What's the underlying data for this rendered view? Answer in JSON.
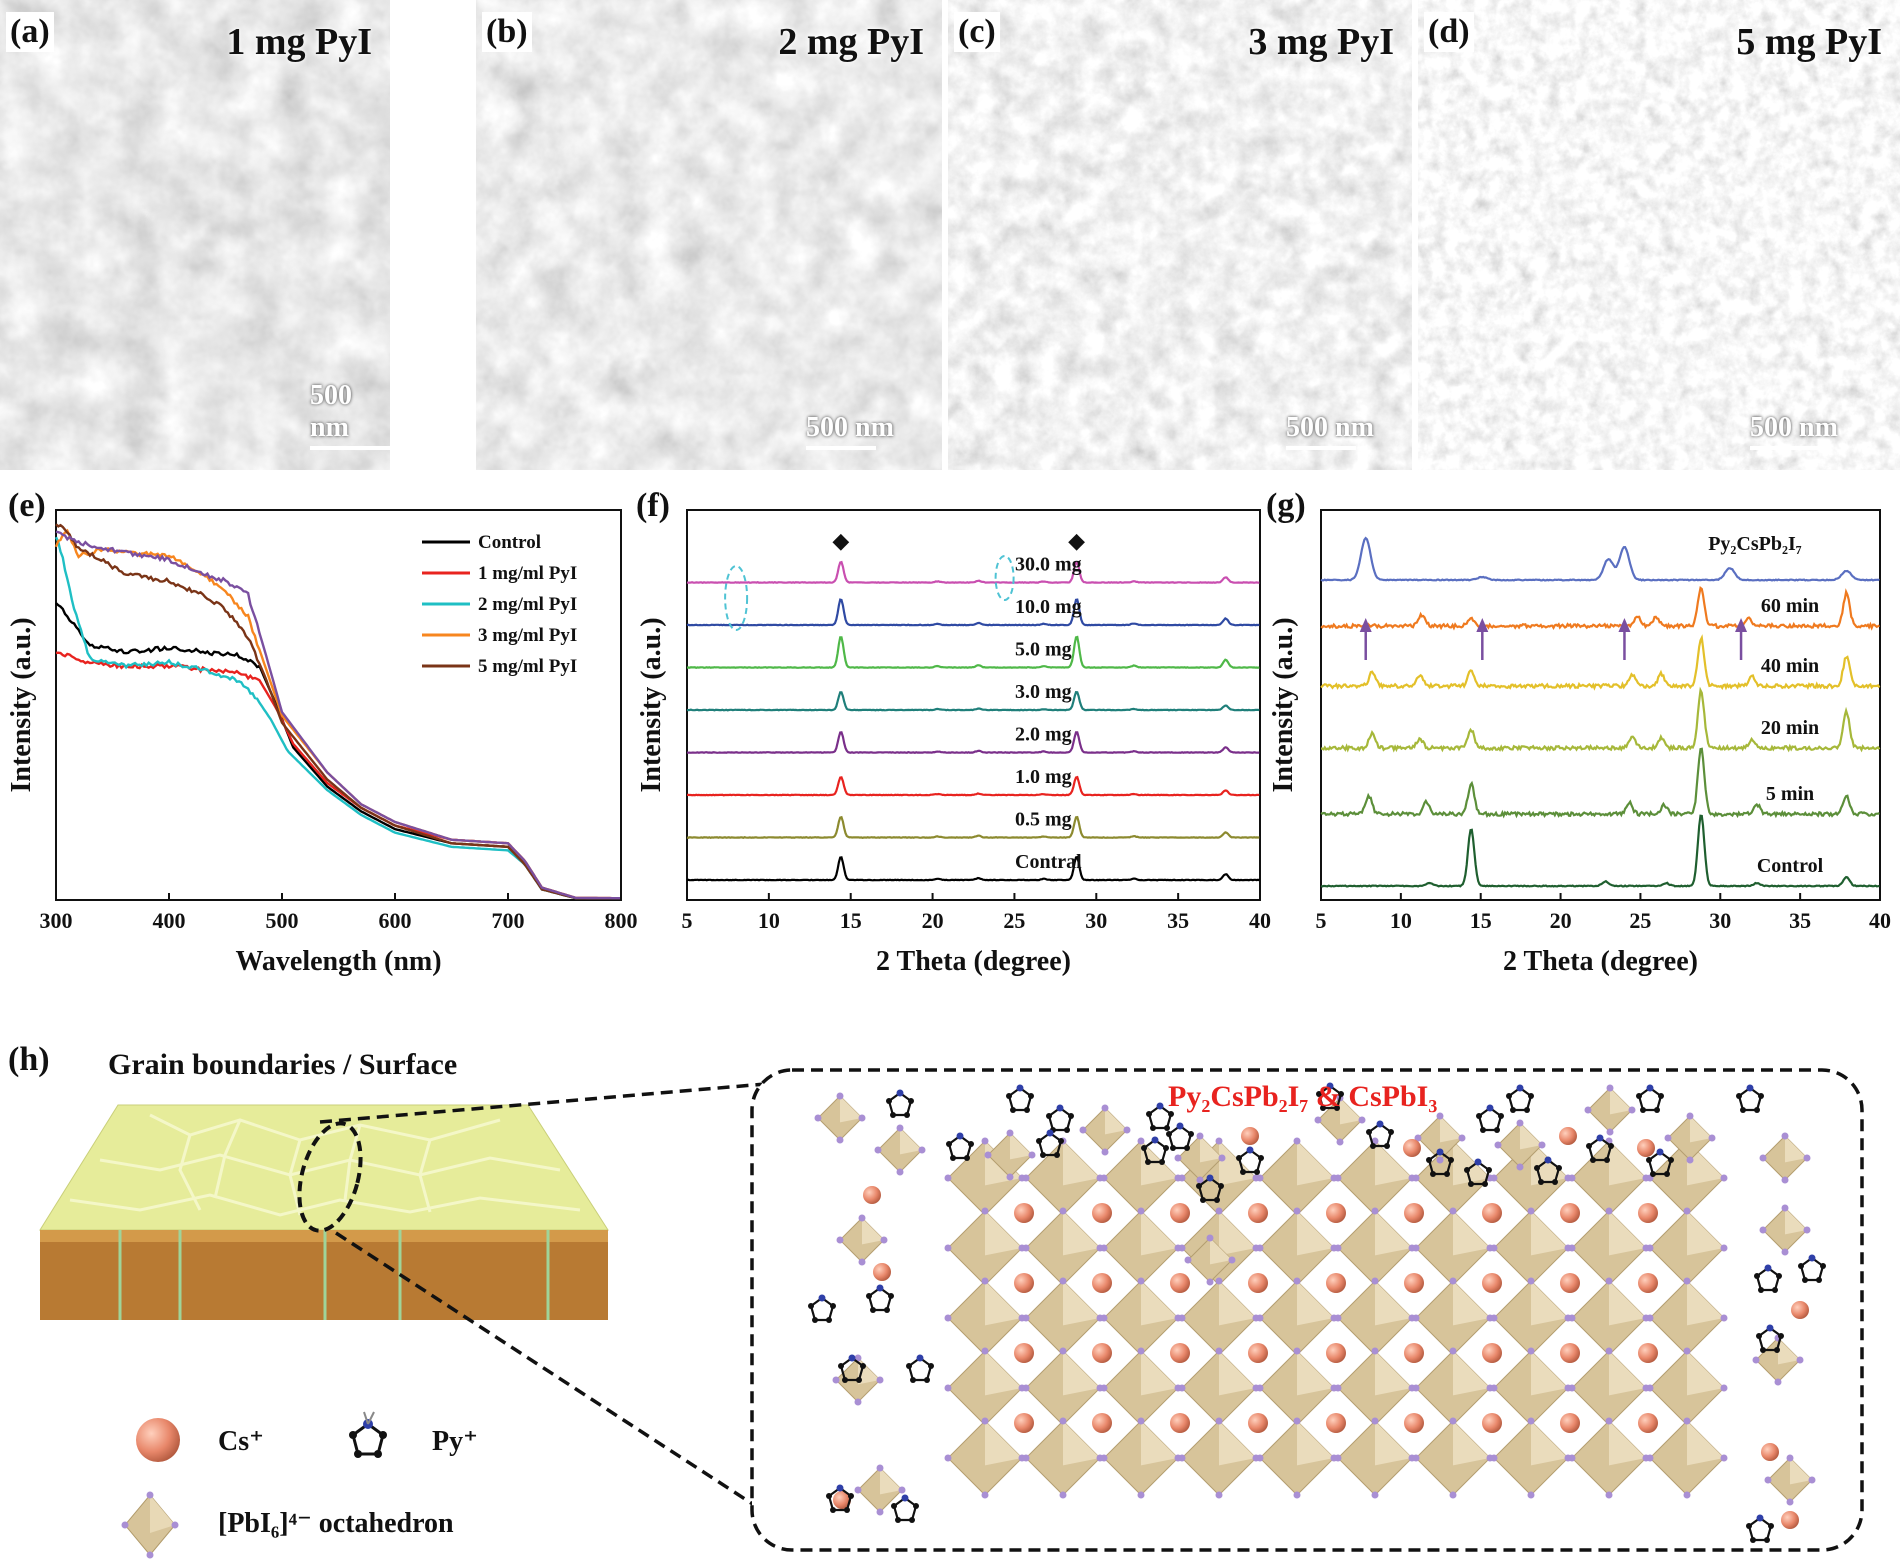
{
  "panels": {
    "a": "(a)",
    "b": "(b)",
    "c": "(c)",
    "d": "(d)",
    "e": "(e)",
    "f": "(f)",
    "g": "(g)",
    "h": "(h)"
  },
  "sem_images": [
    {
      "title": "1 mg PyI",
      "scale": "500 nm"
    },
    {
      "title": "2 mg PyI",
      "scale": "500 nm"
    },
    {
      "title": "3 mg PyI",
      "scale": "500 nm"
    },
    {
      "title": "5 mg PyI",
      "scale": "500 nm"
    }
  ],
  "chart_data": [
    {
      "id": "e",
      "type": "line",
      "xlabel": "Wavelength (nm)",
      "ylabel": "Intensity (a.u.)",
      "xlim": [
        300,
        800
      ],
      "ylim": [
        0,
        1.1
      ],
      "xticks": [
        300,
        400,
        500,
        600,
        700,
        800
      ],
      "legend_position": "top-right",
      "series": [
        {
          "name": "Control",
          "color": "#000000",
          "x": [
            300,
            310,
            330,
            360,
            400,
            430,
            460,
            480,
            495,
            510,
            540,
            570,
            600,
            650,
            700,
            715,
            730,
            760,
            800
          ],
          "y": [
            0.84,
            0.8,
            0.72,
            0.7,
            0.71,
            0.7,
            0.69,
            0.66,
            0.55,
            0.43,
            0.32,
            0.25,
            0.2,
            0.16,
            0.15,
            0.1,
            0.03,
            0.005,
            0.005
          ]
        },
        {
          "name": "1 mg/ml PyI",
          "color": "#e8231f",
          "x": [
            300,
            330,
            360,
            400,
            430,
            460,
            480,
            495,
            510,
            540,
            570,
            600,
            650,
            700,
            715,
            730,
            760,
            800
          ],
          "y": [
            0.7,
            0.67,
            0.66,
            0.66,
            0.65,
            0.64,
            0.62,
            0.54,
            0.44,
            0.33,
            0.26,
            0.21,
            0.17,
            0.16,
            0.11,
            0.035,
            0.006,
            0.005
          ]
        },
        {
          "name": "2 mg/ml PyI",
          "color": "#1fbfc4",
          "x": [
            300,
            305,
            315,
            330,
            360,
            400,
            430,
            460,
            475,
            490,
            505,
            540,
            570,
            600,
            650,
            700,
            715,
            730,
            760,
            800
          ],
          "y": [
            1.02,
            0.98,
            0.83,
            0.68,
            0.66,
            0.67,
            0.65,
            0.62,
            0.58,
            0.51,
            0.42,
            0.31,
            0.24,
            0.19,
            0.15,
            0.14,
            0.1,
            0.03,
            0.005,
            0.005
          ]
        },
        {
          "name": "3 mg/ml PyI",
          "color": "#f7861f",
          "x": [
            300,
            310,
            320,
            340,
            360,
            400,
            430,
            450,
            470,
            485,
            500,
            540,
            570,
            600,
            650,
            700,
            715,
            730,
            760,
            800
          ],
          "y": [
            1.0,
            1.04,
            0.97,
            0.99,
            0.98,
            0.97,
            0.92,
            0.87,
            0.8,
            0.66,
            0.52,
            0.36,
            0.27,
            0.22,
            0.17,
            0.16,
            0.11,
            0.035,
            0.006,
            0.005
          ]
        },
        {
          "name": "5 mg/ml PyI",
          "color": "#7a3417",
          "x": [
            300,
            310,
            320,
            340,
            360,
            400,
            430,
            450,
            470,
            485,
            500,
            540,
            570,
            600,
            650,
            700,
            715,
            730,
            760,
            800
          ],
          "y": [
            1.06,
            1.04,
            0.99,
            0.96,
            0.92,
            0.9,
            0.86,
            0.82,
            0.74,
            0.63,
            0.5,
            0.34,
            0.26,
            0.21,
            0.16,
            0.15,
            0.1,
            0.03,
            0.005,
            0.005
          ]
        },
        {
          "name": "",
          "color": "#7a4fa0",
          "x": [
            300,
            310,
            330,
            360,
            400,
            430,
            450,
            470,
            485,
            500,
            540,
            570,
            600,
            650,
            700,
            715,
            730,
            760,
            800
          ],
          "y": [
            1.04,
            1.02,
            1.0,
            0.98,
            0.96,
            0.92,
            0.9,
            0.86,
            0.7,
            0.53,
            0.36,
            0.27,
            0.22,
            0.17,
            0.16,
            0.11,
            0.035,
            0.006,
            0.005
          ]
        }
      ]
    },
    {
      "id": "f",
      "type": "line",
      "xlabel": "2 Theta (degree)",
      "ylabel": "Intensity (a.u.)",
      "xlim": [
        5,
        40
      ],
      "xticks": [
        5,
        10,
        15,
        20,
        25,
        30,
        35,
        40
      ],
      "markers": "◆",
      "peaks": [
        [
          14.4,
          1.0
        ],
        [
          28.8,
          1.0
        ],
        [
          22.8,
          0.08
        ],
        [
          32.3,
          0.06
        ],
        [
          37.9,
          0.25
        ],
        [
          26.8,
          0.05
        ],
        [
          20.3,
          0.05
        ]
      ],
      "series": [
        {
          "name": "Contral",
          "color": "#000000",
          "peak_scale": 0.9
        },
        {
          "name": "0.5 mg",
          "color": "#8c8a2f",
          "peak_scale": 0.8
        },
        {
          "name": "1.0 mg",
          "color": "#e8231f",
          "peak_scale": 0.7
        },
        {
          "name": "2.0 mg",
          "color": "#7a2f8a",
          "peak_scale": 0.8
        },
        {
          "name": "3.0 mg",
          "color": "#1f7f7a",
          "peak_scale": 0.7
        },
        {
          "name": "5.0 mg",
          "color": "#4fb848",
          "peak_scale": 1.2
        },
        {
          "name": "10.0 mg",
          "color": "#2f4aa3",
          "peak_scale": 1.0
        },
        {
          "name": "30.0 mg",
          "color": "#c94fb0",
          "peak_scale": 0.8
        }
      ]
    },
    {
      "id": "g",
      "type": "line",
      "xlabel": "2 Theta (degree)",
      "ylabel": "Intensity (a.u.)",
      "xlim": [
        5,
        40
      ],
      "xticks": [
        5,
        10,
        15,
        20,
        25,
        30,
        35,
        40
      ],
      "top_series_label": "Py₂CsPb₂I₇",
      "arrow_positions": [
        7.8,
        15.1,
        24.0,
        31.3
      ],
      "series": [
        {
          "name": "Control",
          "color": "#1f5f2f",
          "label_color": "#1f5f2f",
          "peaks": [
            [
              14.4,
              1.9
            ],
            [
              28.8,
              2.4
            ],
            [
              11.8,
              0.1
            ],
            [
              22.8,
              0.15
            ],
            [
              32.3,
              0.1
            ],
            [
              37.9,
              0.3
            ],
            [
              26.6,
              0.1
            ]
          ]
        },
        {
          "name": "5 min",
          "color": "#5c8f3a",
          "peaks": [
            [
              8.0,
              0.6
            ],
            [
              11.6,
              0.4
            ],
            [
              14.4,
              1.0
            ],
            [
              24.3,
              0.4
            ],
            [
              26.5,
              0.3
            ],
            [
              28.8,
              2.2
            ],
            [
              32.3,
              0.3
            ],
            [
              37.9,
              0.6
            ]
          ]
        },
        {
          "name": "20 min",
          "color": "#a6b83a",
          "peaks": [
            [
              8.2,
              0.5
            ],
            [
              11.2,
              0.3
            ],
            [
              14.4,
              0.6
            ],
            [
              24.5,
              0.4
            ],
            [
              26.3,
              0.35
            ],
            [
              28.8,
              1.9
            ],
            [
              32.0,
              0.3
            ],
            [
              37.9,
              1.2
            ]
          ]
        },
        {
          "name": "40 min",
          "color": "#e3c02a",
          "peaks": [
            [
              8.2,
              0.45
            ],
            [
              11.2,
              0.35
            ],
            [
              14.4,
              0.5
            ],
            [
              24.5,
              0.4
            ],
            [
              26.3,
              0.4
            ],
            [
              28.8,
              1.6
            ],
            [
              32.0,
              0.3
            ],
            [
              37.9,
              1.0
            ]
          ]
        },
        {
          "name": "60 min",
          "color": "#ef7a1f",
          "peaks": [
            [
              11.3,
              0.35
            ],
            [
              14.4,
              0.25
            ],
            [
              24.8,
              0.3
            ],
            [
              26.0,
              0.3
            ],
            [
              28.8,
              1.3
            ],
            [
              31.8,
              0.25
            ],
            [
              37.9,
              1.1
            ]
          ]
        },
        {
          "name": "",
          "color": "#5a6fc1",
          "peaks": [
            [
              7.8,
              1.4
            ],
            [
              15.1,
              0.1
            ],
            [
              23.0,
              0.7
            ],
            [
              24.0,
              1.1
            ],
            [
              30.6,
              0.4
            ],
            [
              37.9,
              0.3
            ]
          ]
        }
      ]
    }
  ],
  "schematic": {
    "surface_title": "Grain boundaries / Surface",
    "box_title": "Py₂CsPb₂I₇ & CsPbI₃",
    "legend_cs": "Cs⁺",
    "legend_py": "Py⁺",
    "legend_oct": "[PbI₆]⁴⁻ octahedron"
  },
  "colors": {
    "cs_ball": "#e8876a",
    "octahedron": "#d7c49a",
    "surface_top": "#e6ec9a",
    "surface_side": "#b87a33"
  }
}
